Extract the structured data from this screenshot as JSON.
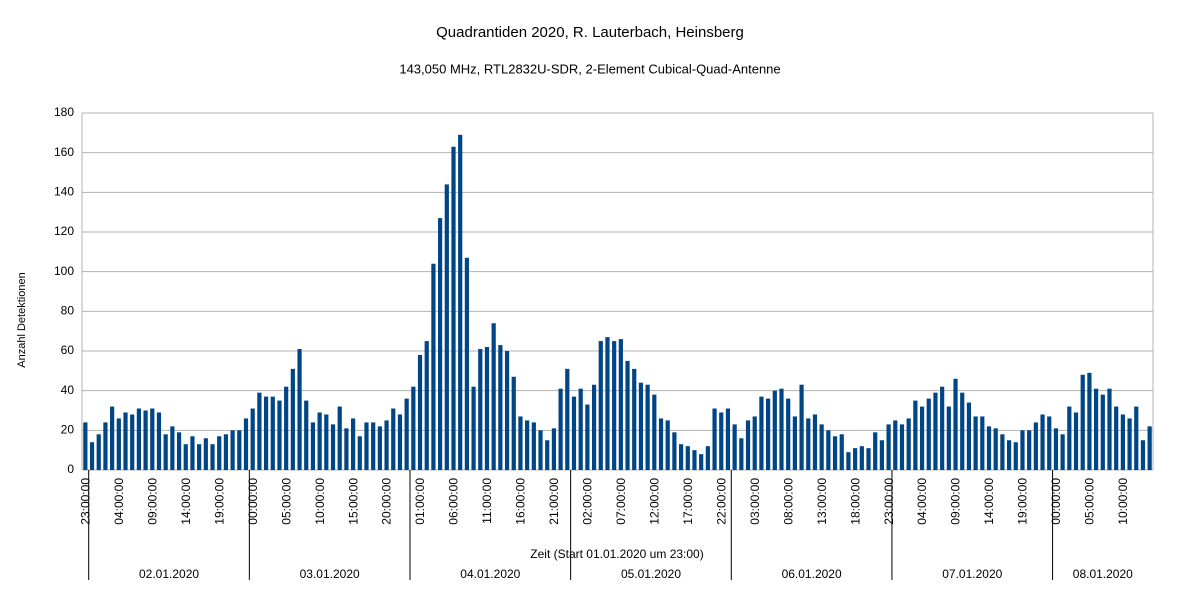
{
  "chart_data": {
    "type": "bar",
    "title": "Quadrantiden 2020, R. Lauterbach, Heinsberg",
    "subtitle": "143,050 MHz, RTL2832U-SDR, 2-Element Cubical-Quad-Antenne",
    "x_label": "Zeit (Start 01.01.2020 um 23:00)",
    "y_label": "Anzahl Detektionen",
    "color": "#004586",
    "grid": true,
    "ylim": [
      0,
      180
    ],
    "yticks": [
      0,
      20,
      40,
      60,
      80,
      100,
      120,
      140,
      160,
      180
    ],
    "date_labels": [
      "02.01.2020",
      "03.01.2020",
      "04.01.2020",
      "05.01.2020",
      "06.01.2020",
      "07.01.2020",
      "08.01.2020"
    ],
    "categories": [
      "23:00:00",
      null,
      null,
      null,
      null,
      "04:00:00",
      null,
      null,
      null,
      null,
      "09:00:00",
      null,
      null,
      null,
      null,
      "14:00:00",
      null,
      null,
      null,
      null,
      "19:00:00",
      null,
      null,
      null,
      null,
      "00:00:00",
      null,
      null,
      null,
      null,
      "05:00:00",
      null,
      null,
      null,
      null,
      "10:00:00",
      null,
      null,
      null,
      null,
      "15:00:00",
      null,
      null,
      null,
      null,
      "20:00:00",
      null,
      null,
      null,
      null,
      "01:00:00",
      null,
      null,
      null,
      null,
      "06:00:00",
      null,
      null,
      null,
      null,
      "11:00:00",
      null,
      null,
      null,
      null,
      "16:00:00",
      null,
      null,
      null,
      null,
      "21:00:00",
      null,
      null,
      null,
      null,
      "02:00:00",
      null,
      null,
      null,
      null,
      "07:00:00",
      null,
      null,
      null,
      null,
      "12:00:00",
      null,
      null,
      null,
      null,
      "17:00:00",
      null,
      null,
      null,
      null,
      "22:00:00",
      null,
      null,
      null,
      null,
      "03:00:00",
      null,
      null,
      null,
      null,
      "08:00:00",
      null,
      null,
      null,
      null,
      "13:00:00",
      null,
      null,
      null,
      null,
      "18:00:00",
      null,
      null,
      null,
      null,
      "23:00:00",
      null,
      null,
      null,
      null,
      "04:00:00",
      null,
      null,
      null,
      null,
      "09:00:00",
      null,
      null,
      null,
      null,
      "14:00:00",
      null,
      null,
      null,
      null,
      "19:00:00",
      null,
      null,
      null,
      null,
      "00:00:00",
      null,
      null,
      null,
      null,
      "05:00:00",
      null,
      null,
      null,
      null,
      "10:00:00",
      null,
      null,
      null,
      null
    ],
    "values": [
      24,
      14,
      18,
      24,
      32,
      26,
      29,
      28,
      31,
      30,
      31,
      29,
      18,
      22,
      19,
      13,
      17,
      13,
      16,
      13,
      17,
      18,
      20,
      20,
      26,
      31,
      39,
      37,
      37,
      35,
      42,
      51,
      61,
      35,
      24,
      29,
      28,
      23,
      32,
      21,
      26,
      17,
      24,
      24,
      22,
      25,
      31,
      28,
      36,
      42,
      58,
      65,
      104,
      127,
      144,
      163,
      169,
      107,
      42,
      61,
      62,
      74,
      63,
      60,
      47,
      27,
      25,
      24,
      20,
      15,
      21,
      41,
      51,
      37,
      41,
      33,
      43,
      65,
      67,
      65,
      66,
      55,
      51,
      44,
      43,
      38,
      26,
      25,
      19,
      13,
      12,
      10,
      8,
      12,
      31,
      29,
      31,
      23,
      16,
      25,
      27,
      37,
      36,
      40,
      41,
      36,
      27,
      43,
      26,
      28,
      23,
      20,
      17,
      18,
      9,
      11,
      12,
      11,
      19,
      15,
      23,
      25,
      23,
      26,
      35,
      32,
      36,
      39,
      42,
      32,
      46,
      39,
      34,
      27,
      27,
      22,
      21,
      18,
      15,
      14,
      20,
      20,
      24,
      28,
      27,
      21,
      18,
      32,
      29,
      48,
      49,
      41,
      38,
      41,
      32,
      28,
      26,
      32,
      15,
      22
    ]
  }
}
